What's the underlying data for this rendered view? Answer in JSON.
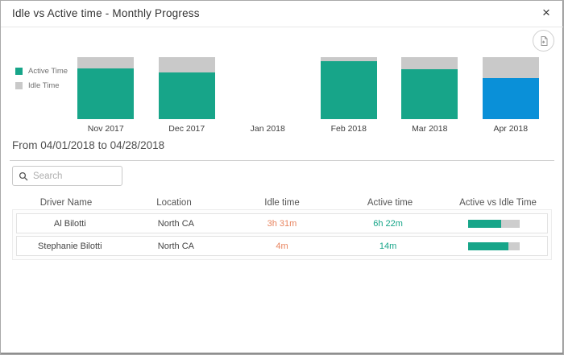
{
  "modal": {
    "title": "Idle vs Active time - Monthly Progress",
    "close_glyph": "×"
  },
  "chart_data": {
    "type": "bar",
    "variant": "100-percent-stacked-column",
    "title": "Idle vs Active time - Monthly Progress",
    "categories": [
      "Nov 2017",
      "Dec 2017",
      "Jan 2018",
      "Feb 2018",
      "Mar 2018",
      "Apr 2018"
    ],
    "series": [
      {
        "name": "Active Time",
        "color": "#17a589",
        "values": [
          82,
          75,
          null,
          93,
          80,
          66
        ]
      },
      {
        "name": "Idle Time",
        "color": "#c9c9c9",
        "values": [
          18,
          25,
          null,
          7,
          20,
          34
        ]
      }
    ],
    "highlighted_category": "Apr 2018",
    "highlight_color": "#0a90d8",
    "legend_position": "left",
    "axes_hidden": true
  },
  "period": {
    "label": "From 04/01/2018 to 04/28/2018"
  },
  "search": {
    "placeholder": "Search"
  },
  "table": {
    "columns": [
      "Driver Name",
      "Location",
      "Idle time",
      "Active time",
      "Active vs Idle Time"
    ],
    "rows": [
      {
        "driver": "Al Bilotti",
        "location": "North CA",
        "idle_time": "3h 31m",
        "active_time": "6h 22m",
        "active_pct": 64
      },
      {
        "driver": "Stephanie Bilotti",
        "location": "North CA",
        "idle_time": "4m",
        "active_time": "14m",
        "active_pct": 78
      }
    ]
  },
  "colors": {
    "active": "#17a589",
    "idle": "#c9c9c9",
    "selected": "#0a90d8",
    "idle_text": "#e8845f",
    "active_text": "#17a589",
    "ratio_track": "#cdcdcd"
  }
}
